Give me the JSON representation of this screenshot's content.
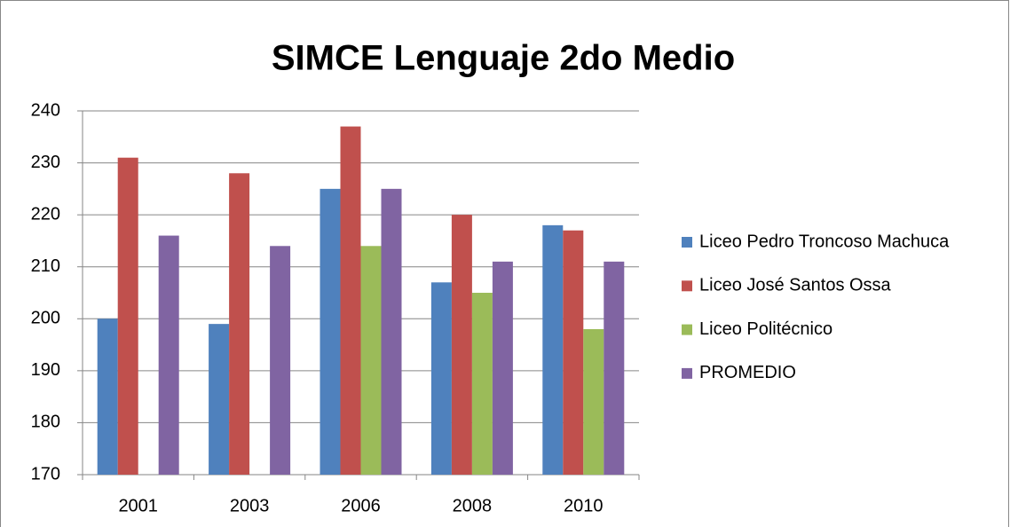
{
  "chart_data": {
    "type": "bar",
    "title": "SIMCE Lenguaje 2do Medio",
    "categories": [
      "2001",
      "2003",
      "2006",
      "2008",
      "2010"
    ],
    "series": [
      {
        "name": "Liceo Pedro Troncoso Machuca",
        "color": "#4f81bd",
        "values": [
          200,
          199,
          225,
          207,
          218
        ]
      },
      {
        "name": "Liceo José Santos Ossa",
        "color": "#c0504d",
        "values": [
          231,
          228,
          237,
          220,
          217
        ]
      },
      {
        "name": "Liceo Politécnico",
        "color": "#9bbb59",
        "values": [
          null,
          null,
          214,
          205,
          198
        ]
      },
      {
        "name": "PROMEDIO",
        "color": "#8064a2",
        "values": [
          216,
          214,
          225,
          211,
          211
        ]
      }
    ],
    "ylim": [
      170,
      240
    ],
    "yticks": [
      170,
      180,
      190,
      200,
      210,
      220,
      230,
      240
    ],
    "grid": true,
    "legend": "right"
  }
}
